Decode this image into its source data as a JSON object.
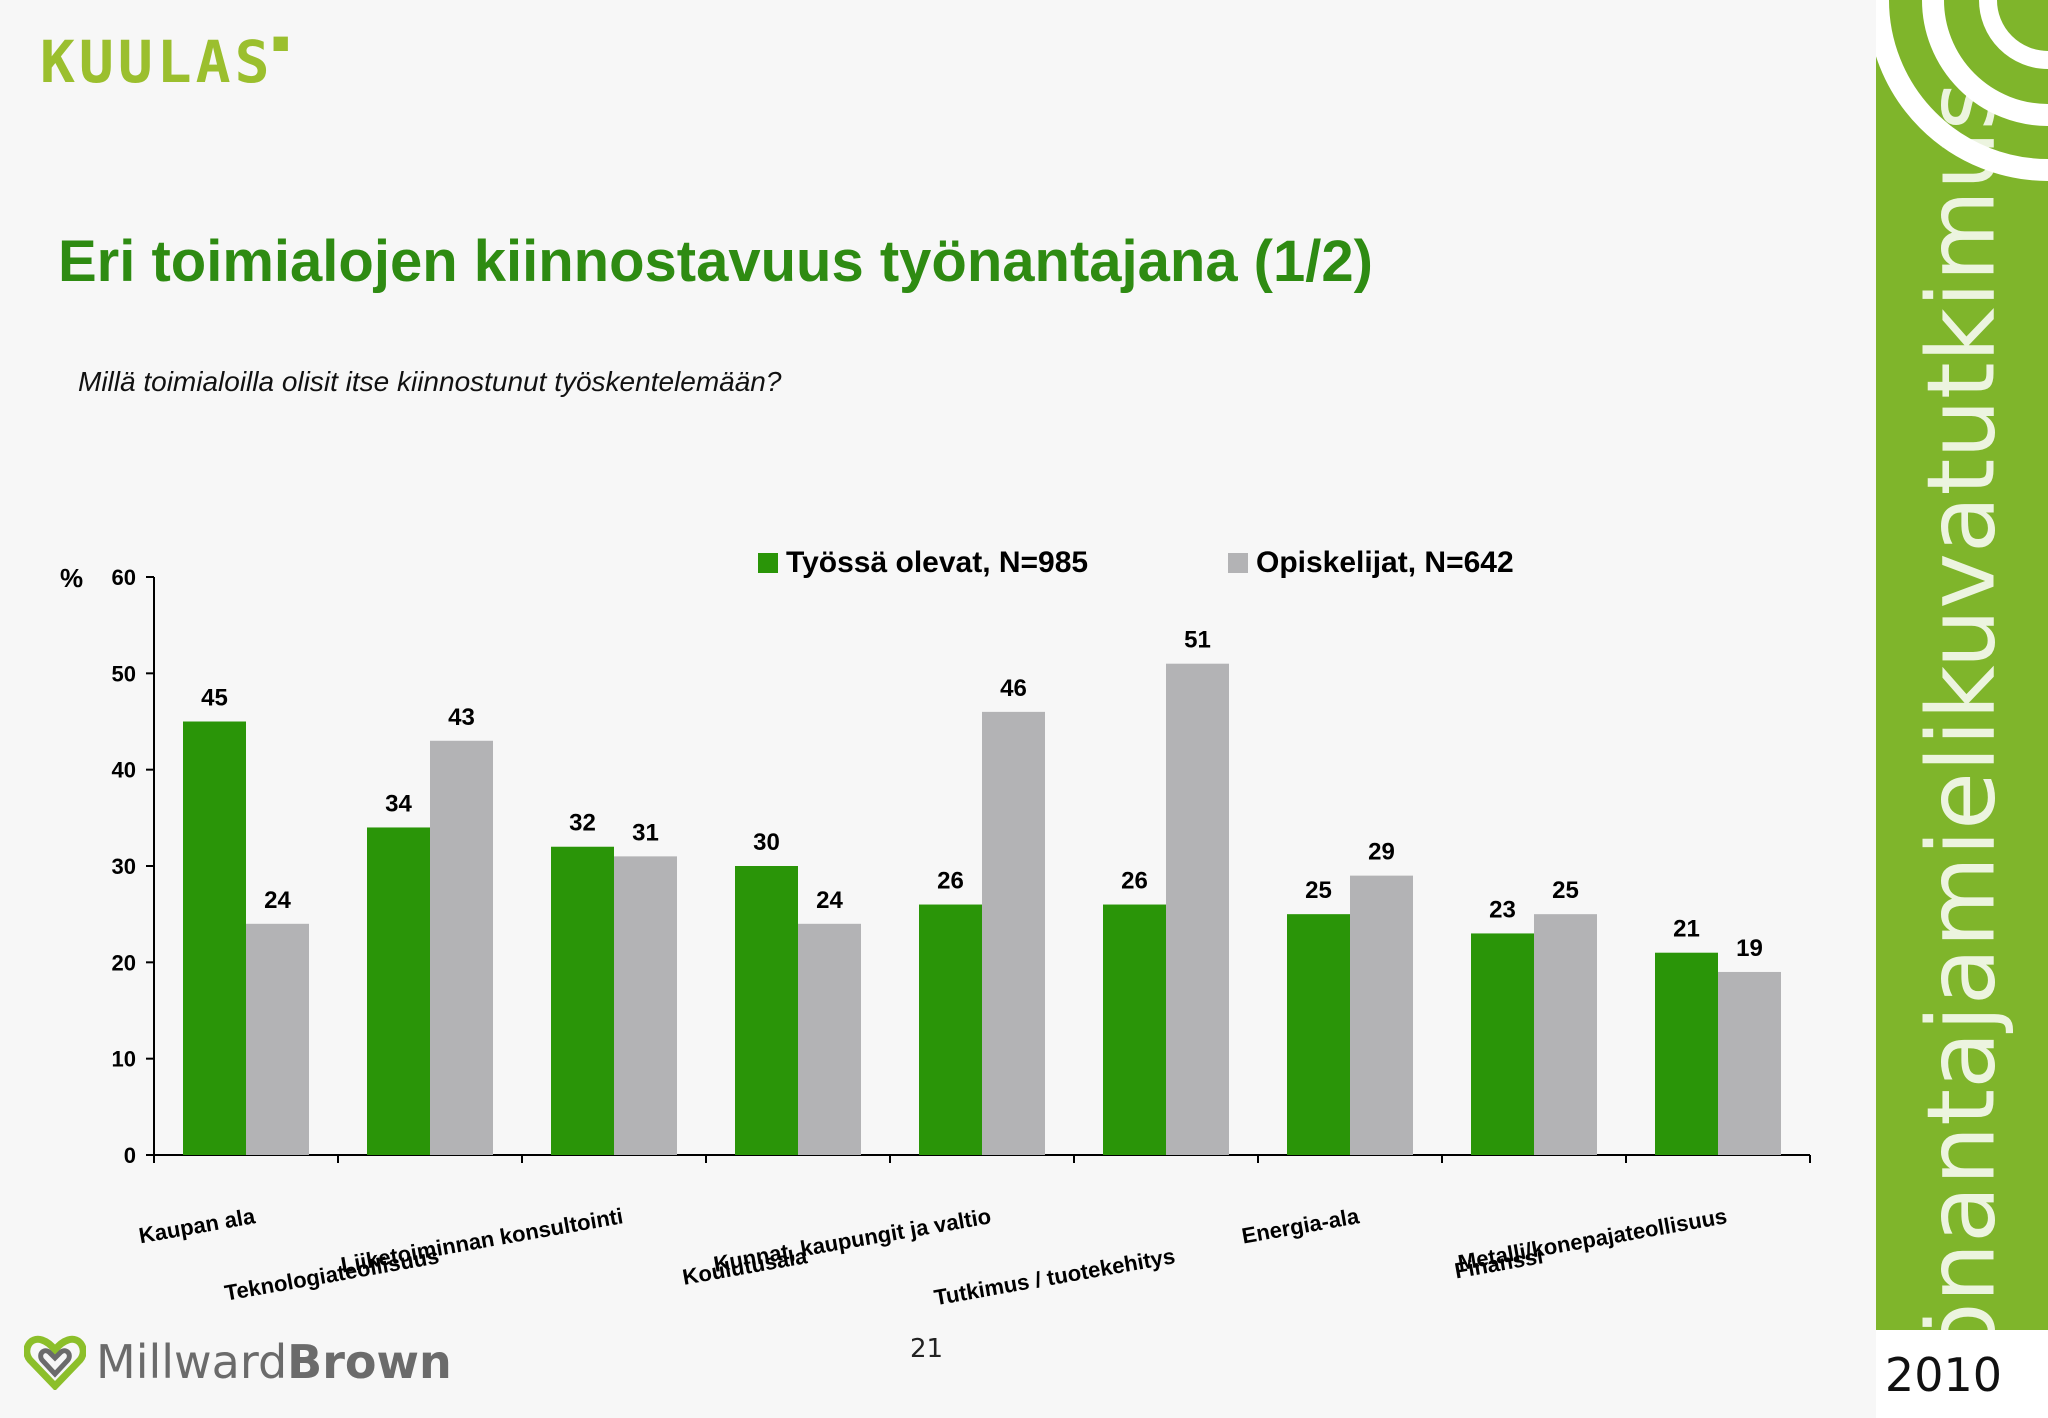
{
  "header": {
    "logo_text": "KUULAS"
  },
  "title": "Eri toimialojen kiinnostavuus työnantajana (1/2)",
  "subtitle": "Millä toimialoilla olisit itse kiinnostunut työskentelemään?",
  "sidebar": {
    "text": "Työnantajamielikuvatutkimus",
    "year": "2010"
  },
  "footer": {
    "page_number": "21",
    "logo_text_light": "Millward",
    "logo_text_bold": "Brown"
  },
  "colors": {
    "green": "#2a9508",
    "gray": "#b3b3b5",
    "title_green": "#2e8b12",
    "sidebar_green": "#7fb52b"
  },
  "chart_data": {
    "type": "bar",
    "ylabel": "%",
    "ylim": [
      0,
      60
    ],
    "yticks": [
      0,
      10,
      20,
      30,
      40,
      50,
      60
    ],
    "legend_position": "top",
    "categories": [
      "Kaupan ala",
      "Teknologiateollisuus",
      "Liiketoiminnan konsultointi",
      "Koulutusala",
      "Kunnat, kaupungit ja valtio",
      "Tutkimus / tuotekehitys",
      "Energia-ala",
      "Finanssi",
      "Metalli/konepajateollisuus"
    ],
    "series": [
      {
        "name": "Työssä olevat, N=985",
        "color": "#2a9508",
        "values": [
          45,
          34,
          32,
          30,
          26,
          26,
          25,
          23,
          21
        ]
      },
      {
        "name": "Opiskelijat, N=642",
        "color": "#b3b3b5",
        "values": [
          24,
          43,
          31,
          24,
          46,
          51,
          29,
          25,
          19
        ]
      }
    ]
  }
}
